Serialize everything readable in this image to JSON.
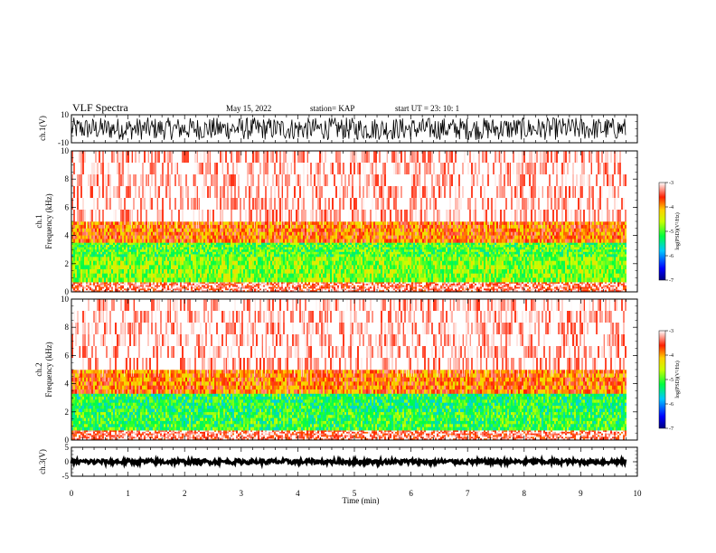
{
  "header": {
    "title": "VLF Spectra",
    "date": "May 15, 2022",
    "station": "station= KAP",
    "start": "start UT = 23: 10: 1"
  },
  "colors": {
    "spectrum_high": "#ff0000",
    "spectrum_mid": "#ffee00",
    "spectrum_low": "#22dd22",
    "background": "#ffffff",
    "trace": "#000000"
  },
  "chart_data": [
    {
      "type": "line",
      "panel": "ch1-waveform",
      "ylabel": "ch.1(V)",
      "ylim": [
        -10,
        10
      ],
      "yticks": [
        "10",
        "-10"
      ],
      "xlim": [
        0,
        10
      ],
      "description_values": {
        "typical_min": -8,
        "typical_max": 8
      }
    },
    {
      "type": "heatmap",
      "panel": "ch1-spectrogram",
      "ylabel_top": "ch.1",
      "ylabel": "Frequency (kHz)",
      "ylim": [
        0,
        10
      ],
      "yticks": [
        "10",
        "8",
        "6",
        "4",
        "2",
        "0"
      ],
      "xlim": [
        0,
        9.8
      ],
      "bands": [
        {
          "from_khz": 0,
          "to_khz": 0.7,
          "level": -3.3
        },
        {
          "from_khz": 0.7,
          "to_khz": 2.5,
          "level": -4.8
        },
        {
          "from_khz": 2.5,
          "to_khz": 3.5,
          "level": -5.0
        },
        {
          "from_khz": 3.5,
          "to_khz": 5,
          "level": -3.8
        },
        {
          "from_khz": 5,
          "to_khz": 10,
          "level": -3.0
        }
      ],
      "colorbar": {
        "label": "log(PSD)(V²/Hz)",
        "ticks": [
          "-3",
          "-4",
          "-5",
          "-6",
          "-7"
        ],
        "range": [
          -7,
          -3
        ]
      }
    },
    {
      "type": "heatmap",
      "panel": "ch2-spectrogram",
      "ylabel_top": "ch.2",
      "ylabel": "Frequency (kHz)",
      "ylim": [
        0,
        10
      ],
      "yticks": [
        "10",
        "8",
        "6",
        "4",
        "2",
        "0"
      ],
      "xlim": [
        0,
        9.8
      ],
      "bands": [
        {
          "from_khz": 0,
          "to_khz": 0.7,
          "level": -3.3
        },
        {
          "from_khz": 0.7,
          "to_khz": 2.0,
          "level": -5.1
        },
        {
          "from_khz": 2.0,
          "to_khz": 3.3,
          "level": -5.2
        },
        {
          "from_khz": 3.3,
          "to_khz": 5,
          "level": -3.8
        },
        {
          "from_khz": 5,
          "to_khz": 10,
          "level": -3.0
        }
      ],
      "colorbar": {
        "label": "log(PSD)(V²/Hz)",
        "ticks": [
          "-3",
          "-4",
          "-5",
          "-6",
          "-7"
        ],
        "range": [
          -7,
          -3
        ]
      }
    },
    {
      "type": "line",
      "panel": "ch3-waveform",
      "ylabel": "ch.3(V)",
      "ylim": [
        -5,
        5
      ],
      "yticks": [
        "5",
        "0",
        "-5"
      ],
      "xlim": [
        0,
        10
      ],
      "description_values": {
        "typical_min": -0.8,
        "typical_max": 0.8
      }
    }
  ],
  "xaxis": {
    "label": "Time (min)",
    "ticks": [
      "0",
      "1",
      "2",
      "3",
      "4",
      "5",
      "6",
      "7",
      "8",
      "9",
      "10"
    ],
    "range": [
      0,
      10
    ],
    "data_end": 9.8
  }
}
